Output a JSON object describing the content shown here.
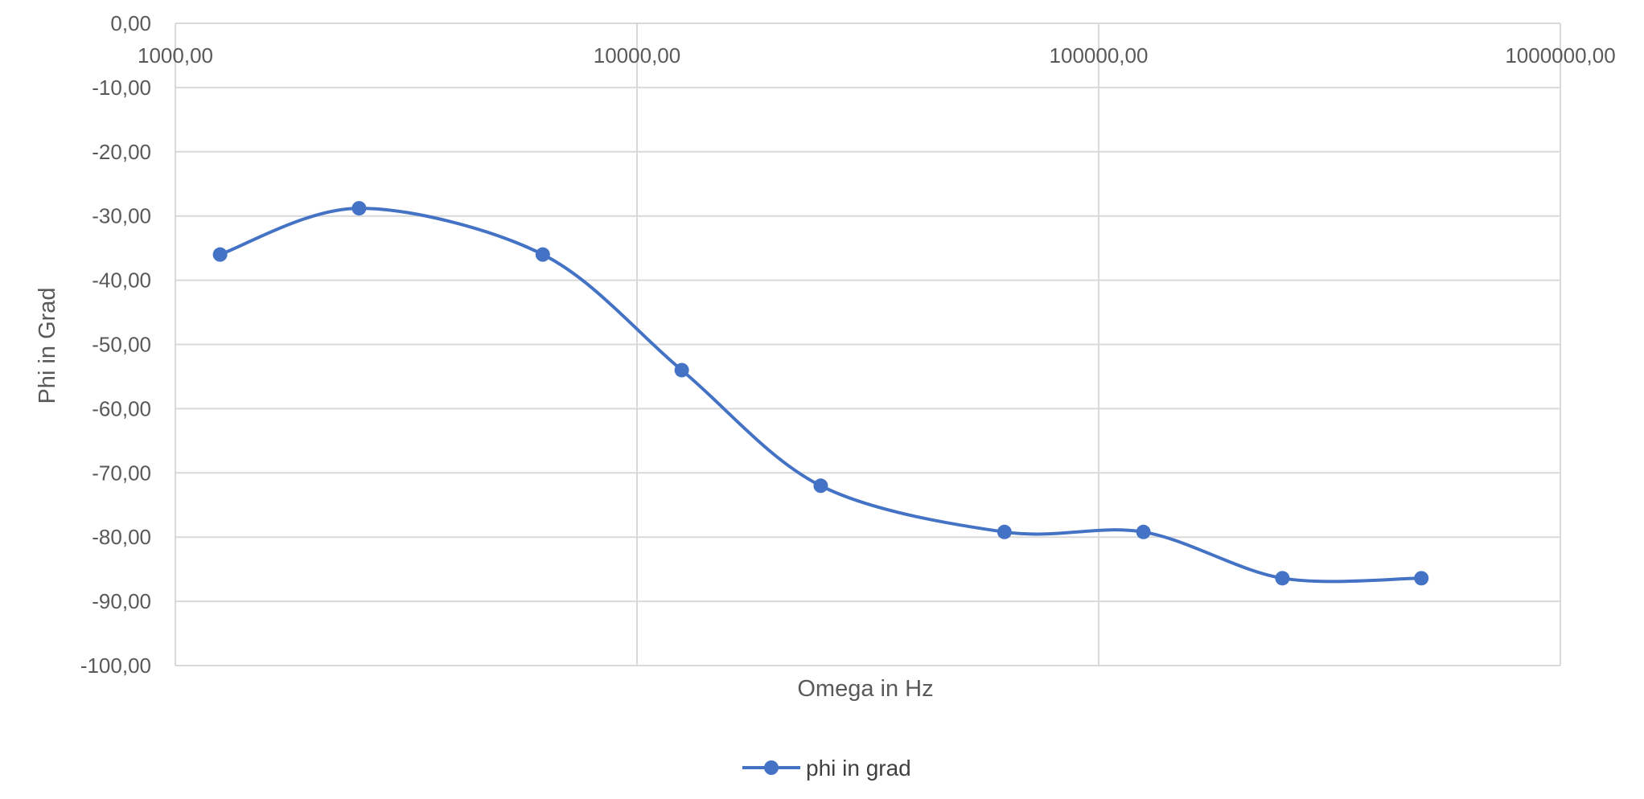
{
  "chart_data": {
    "type": "scatter",
    "title": "",
    "xlabel": "Omega in Hz",
    "ylabel": "Phi in Grad",
    "x_scale": "log",
    "xlim": [
      1000,
      1000000
    ],
    "ylim": [
      -100,
      0
    ],
    "x_ticks": [
      "1000,00",
      "10000,00",
      "100000,00",
      "1000000,00"
    ],
    "y_ticks": [
      "0,00",
      "-10,00",
      "-20,00",
      "-30,00",
      "-40,00",
      "-50,00",
      "-60,00",
      "-70,00",
      "-80,00",
      "-90,00",
      "-100,00"
    ],
    "x_tick_values": [
      1000,
      10000,
      100000,
      1000000
    ],
    "y_tick_values": [
      0,
      -10,
      -20,
      -30,
      -40,
      -50,
      -60,
      -70,
      -80,
      -90,
      -100
    ],
    "grid": true,
    "smooth_line": true,
    "markers": true,
    "legend_position": "bottom",
    "series": [
      {
        "name": "phi in grad",
        "color": "#4472C4",
        "x": [
          1250,
          2500,
          6250,
          12500,
          25000,
          62500,
          125000,
          250000,
          500000
        ],
        "y": [
          -36,
          -28.8,
          -36,
          -54,
          -72,
          -79.2,
          -79.2,
          -86.4,
          -86.4
        ]
      }
    ]
  }
}
